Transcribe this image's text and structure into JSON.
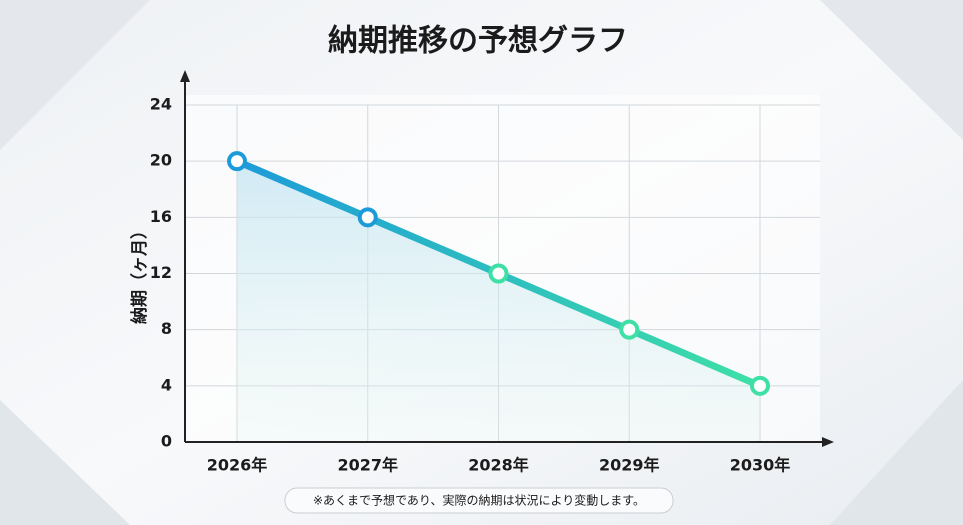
{
  "chart_data": {
    "type": "line",
    "title": "納期推移の予想グラフ",
    "y_label": "納期（ヶ月）",
    "categories": [
      "2026年",
      "2027年",
      "2028年",
      "2029年",
      "2030年"
    ],
    "values": [
      20,
      16,
      12,
      8,
      4
    ],
    "gradient": [
      "#1d9bd9",
      "#3ee0a6"
    ],
    "ylim": [
      0,
      24
    ],
    "yticks": [
      0,
      4,
      8,
      12,
      16,
      20,
      24
    ],
    "grid": true,
    "note": "※あくまで予想であり、実際の納期は状況により変動します。"
  }
}
